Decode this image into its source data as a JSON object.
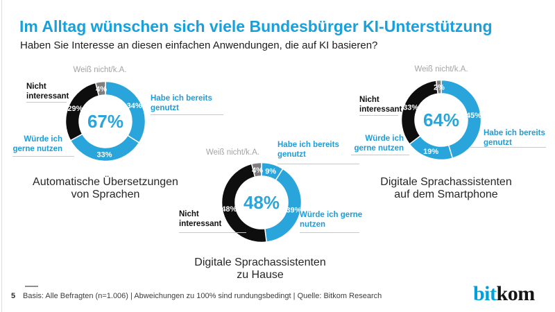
{
  "colors": {
    "blue": "#29a5db",
    "blue_title": "#19a0db",
    "blue_label": "#1e9cd7",
    "blue_logo": "#00a0db",
    "black": "#0e0e0e",
    "gray": "#7e7e7e"
  },
  "header": {
    "title": "Im Alltag wünschen sich viele Bundesbürger KI-Unterstützung",
    "subtitle": "Haben Sie Interesse an diesen einfachen Anwendungen, die auf KI basieren?"
  },
  "chart_data": [
    {
      "type": "pie",
      "subtype": "donut",
      "title": "Automatische Übersetzungen von Sprachen",
      "center_label": "67%",
      "unit": "%",
      "segments": [
        {
          "label": "Habe ich bereits genutzt",
          "value": 34,
          "color": "blue"
        },
        {
          "label": "Würde ich gerne nutzen",
          "value": 33,
          "color": "blue"
        },
        {
          "label": "Nicht interessant",
          "value": 29,
          "color": "black"
        },
        {
          "label": "Weiß nicht/k.A.",
          "value": 4,
          "color": "gray"
        }
      ]
    },
    {
      "type": "pie",
      "subtype": "donut",
      "title": "Digitale Sprachassistenten zu Hause",
      "center_label": "48%",
      "unit": "%",
      "segments": [
        {
          "label": "Habe ich bereits genutzt",
          "value": 9,
          "color": "blue"
        },
        {
          "label": "Würde ich gerne nutzen",
          "value": 39,
          "color": "blue"
        },
        {
          "label": "Nicht interessant",
          "value": 48,
          "color": "black"
        },
        {
          "label": "Weiß nicht/k.A.",
          "value": 4,
          "color": "gray"
        }
      ]
    },
    {
      "type": "pie",
      "subtype": "donut",
      "title": "Digitale Sprachassistenten auf dem Smartphone",
      "center_label": "64%",
      "unit": "%",
      "segments": [
        {
          "label": "Habe ich bereits genutzt",
          "value": 45,
          "color": "blue"
        },
        {
          "label": "Würde ich gerne nutzen",
          "value": 19,
          "color": "blue"
        },
        {
          "label": "Nicht interessant",
          "value": 33,
          "color": "black"
        },
        {
          "label": "Weiß nicht/k.A.",
          "value": 2,
          "color": "gray"
        }
      ]
    }
  ],
  "footer": {
    "page": "5",
    "text": "Basis: Alle Befragten (n=1.006) | Abweichungen zu 100% sind rundungsbedingt | Quelle: Bitkom Research",
    "logo": {
      "bit": "bit",
      "kom": "kom"
    }
  }
}
